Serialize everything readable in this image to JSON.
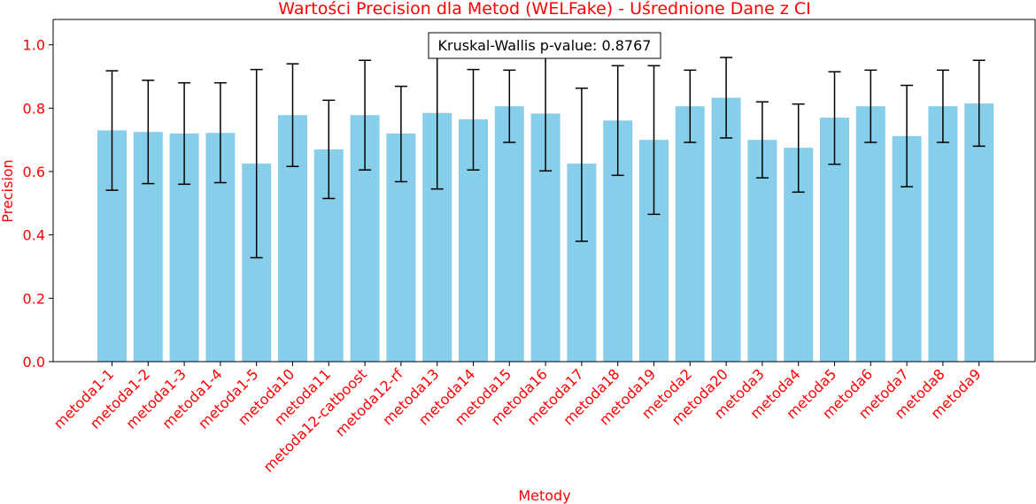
{
  "chart_data": {
    "type": "bar",
    "title": "Wartości Precision dla Metod (WELFake) - Uśrednione Dane z CI",
    "xlabel": "Metody",
    "ylabel": "Precision",
    "ylim": [
      0,
      1.08
    ],
    "yticks": [
      "0.0",
      "0.2",
      "0.4",
      "0.6",
      "0.8",
      "1.0"
    ],
    "grid": false,
    "annotation": "Kruskal-Wallis p-value: 0.8767",
    "colors": {
      "bar": "#87ceeb",
      "errorbar": "#000000",
      "labels": "#ff0000",
      "axes": "#000000"
    },
    "categories": [
      "metoda1-1",
      "metoda1-2",
      "metoda1-3",
      "metoda1-4",
      "metoda1-5",
      "metoda10",
      "metoda11",
      "metoda12-catboost",
      "metoda12-rf",
      "metoda13",
      "metoda14",
      "metoda15",
      "metoda16",
      "metoda17",
      "metoda18",
      "metoda19",
      "metoda2",
      "metoda20",
      "metoda3",
      "metoda4",
      "metoda5",
      "metoda6",
      "metoda7",
      "metoda8",
      "metoda9"
    ],
    "values": [
      0.73,
      0.725,
      0.72,
      0.722,
      0.625,
      0.778,
      0.67,
      0.778,
      0.72,
      0.785,
      0.765,
      0.806,
      0.783,
      0.625,
      0.761,
      0.7,
      0.806,
      0.833,
      0.7,
      0.675,
      0.77,
      0.806,
      0.712,
      0.806,
      0.815
    ],
    "ci_lower": [
      0.541,
      0.562,
      0.56,
      0.565,
      0.328,
      0.616,
      0.515,
      0.605,
      0.568,
      0.545,
      0.605,
      0.692,
      0.602,
      0.38,
      0.588,
      0.465,
      0.692,
      0.706,
      0.58,
      0.535,
      0.623,
      0.692,
      0.552,
      0.692,
      0.68
    ],
    "ci_upper": [
      0.918,
      0.888,
      0.88,
      0.88,
      0.922,
      0.94,
      0.825,
      0.951,
      0.869,
      1.025,
      0.922,
      0.92,
      0.963,
      0.863,
      0.934,
      0.934,
      0.92,
      0.96,
      0.82,
      0.813,
      0.915,
      0.92,
      0.872,
      0.92,
      0.951
    ]
  }
}
